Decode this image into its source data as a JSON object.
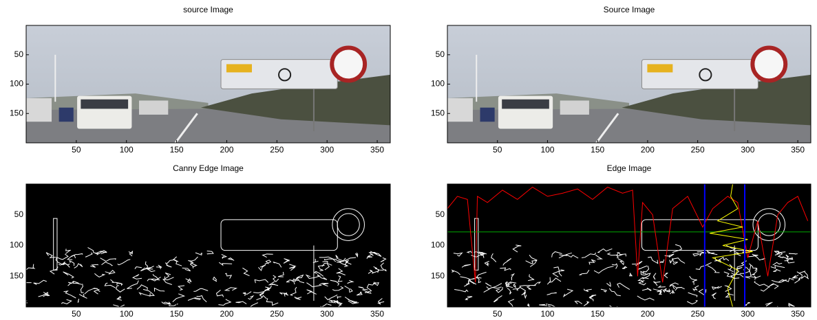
{
  "chart_data": [
    {
      "type": "image",
      "title": "source Image",
      "xlim": [
        0,
        363
      ],
      "ylim": [
        0,
        200
      ],
      "xticks": [
        50,
        100,
        150,
        200,
        250,
        300,
        350
      ],
      "yticks": [
        50,
        100,
        150
      ]
    },
    {
      "type": "image",
      "title": "Source Image",
      "xlim": [
        0,
        363
      ],
      "ylim": [
        0,
        200
      ],
      "xticks": [
        50,
        100,
        150,
        200,
        250,
        300,
        350
      ],
      "yticks": [
        50,
        100,
        150
      ]
    },
    {
      "type": "image",
      "title": "Canny Edge Image",
      "xlim": [
        0,
        363
      ],
      "ylim": [
        0,
        200
      ],
      "xticks": [
        50,
        100,
        150,
        200,
        250,
        300,
        350
      ],
      "yticks": [
        50,
        100,
        150
      ]
    },
    {
      "type": "image",
      "title": "Edge Image",
      "xlim": [
        0,
        363
      ],
      "ylim": [
        0,
        200
      ],
      "xticks": [
        50,
        100,
        150,
        200,
        250,
        300,
        350
      ],
      "yticks": [
        50,
        100,
        150
      ],
      "profile": {
        "color": "#ff0000",
        "x": [
          0,
          10,
          20,
          28,
          30,
          40,
          55,
          70,
          85,
          100,
          115,
          130,
          145,
          160,
          175,
          185,
          190,
          195,
          205,
          215,
          225,
          240,
          255,
          265,
          280,
          290,
          300,
          310,
          320,
          330,
          340,
          350,
          360
        ],
        "values": [
          40,
          20,
          25,
          160,
          20,
          30,
          10,
          25,
          5,
          20,
          15,
          8,
          25,
          5,
          15,
          10,
          150,
          30,
          50,
          160,
          40,
          20,
          70,
          40,
          20,
          30,
          120,
          60,
          150,
          50,
          30,
          20,
          60
        ]
      },
      "column_profile": {
        "color": "#ffff00",
        "x": [
          285,
          283,
          290,
          270,
          295,
          262,
          300,
          275,
          305,
          265,
          290,
          280,
          285
        ],
        "values": [
          0,
          20,
          40,
          60,
          70,
          80,
          90,
          100,
          110,
          120,
          140,
          170,
          200
        ]
      },
      "vlines": {
        "color": "#0000ff",
        "values": [
          257,
          297
        ]
      },
      "hline": {
        "color": "#00aa00",
        "value": 78
      }
    }
  ]
}
